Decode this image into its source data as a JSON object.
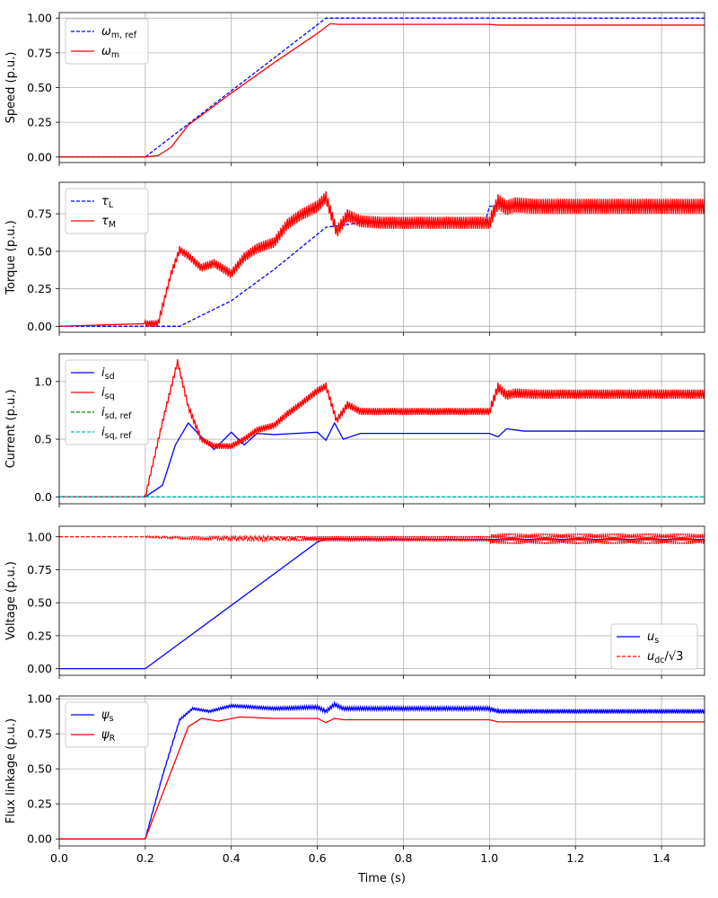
{
  "chart_data": [
    {
      "type": "line",
      "ylabel": "Speed (p.u.)",
      "xlim": [
        0,
        1.5
      ],
      "ylim": [
        -0.04,
        1.04
      ],
      "yticks": [
        "0.00",
        "0.25",
        "0.50",
        "0.75",
        "1.00"
      ],
      "ytick_values": [
        0,
        0.25,
        0.5,
        0.75,
        1.0
      ],
      "grid": true,
      "legend_position": "upper-left",
      "series": [
        {
          "name": "ω_m,ref",
          "label_main": "ω",
          "label_sub": "m, ref",
          "color": "#0000ff",
          "dash": true,
          "x": [
            0,
            0.2,
            0.62,
            1.5
          ],
          "y": [
            0,
            0,
            1.0,
            1.0
          ]
        },
        {
          "name": "ω_m",
          "label_main": "ω",
          "label_sub": "m",
          "color": "#ff0000",
          "dash": false,
          "x": [
            0,
            0.2,
            0.23,
            0.26,
            0.3,
            0.4,
            0.5,
            0.6,
            0.63,
            0.65,
            0.7,
            0.8,
            1.0,
            1.02,
            1.5
          ],
          "y": [
            0,
            0,
            0.01,
            0.07,
            0.23,
            0.46,
            0.68,
            0.89,
            0.96,
            0.955,
            0.955,
            0.955,
            0.955,
            0.95,
            0.95
          ]
        }
      ]
    },
    {
      "type": "line",
      "ylabel": "Torque (p.u.)",
      "xlim": [
        0,
        1.5
      ],
      "ylim": [
        -0.04,
        0.96
      ],
      "yticks": [
        "0.00",
        "0.25",
        "0.50",
        "0.75"
      ],
      "ytick_values": [
        0,
        0.25,
        0.5,
        0.75
      ],
      "grid": true,
      "legend_position": "upper-left",
      "series": [
        {
          "name": "τ_L",
          "label_main": "τ",
          "label_sub": "L",
          "color": "#0000ff",
          "dash": true,
          "x": [
            0,
            0.28,
            0.4,
            0.5,
            0.62,
            0.7,
            0.99,
            1.0,
            1.03,
            1.5
          ],
          "y": [
            0,
            0,
            0.17,
            0.38,
            0.66,
            0.69,
            0.69,
            0.8,
            0.8,
            0.8
          ]
        },
        {
          "name": "τ_M",
          "label_main": "τ",
          "label_sub": "M",
          "color": "#ff0000",
          "dash": false,
          "ripple": true,
          "x": [
            0,
            0.23,
            0.26,
            0.28,
            0.3,
            0.33,
            0.36,
            0.4,
            0.43,
            0.46,
            0.5,
            0.53,
            0.56,
            0.6,
            0.62,
            0.645,
            0.67,
            0.7,
            0.75,
            1.0,
            1.02,
            1.04,
            1.06,
            1.1,
            1.5
          ],
          "y": [
            0,
            0.02,
            0.35,
            0.51,
            0.47,
            0.39,
            0.42,
            0.35,
            0.46,
            0.52,
            0.56,
            0.68,
            0.74,
            0.8,
            0.86,
            0.63,
            0.74,
            0.7,
            0.69,
            0.69,
            0.83,
            0.79,
            0.81,
            0.8,
            0.8
          ],
          "ripple_amplitude": [
            0.02,
            0.04,
            0.05
          ]
        }
      ]
    },
    {
      "type": "line",
      "ylabel": "Current (p.u.)",
      "xlim": [
        0,
        1.5
      ],
      "ylim": [
        -0.06,
        1.24
      ],
      "yticks": [
        "0.0",
        "0.5",
        "1.0"
      ],
      "ytick_values": [
        0,
        0.5,
        1.0
      ],
      "grid": true,
      "legend_position": "upper-left",
      "series": [
        {
          "name": "i_sd",
          "label_main": "i",
          "label_sub": "sd",
          "color": "#0000ff",
          "dash": false,
          "x": [
            0,
            0.2,
            0.24,
            0.27,
            0.3,
            0.33,
            0.36,
            0.4,
            0.43,
            0.46,
            0.5,
            0.55,
            0.6,
            0.62,
            0.64,
            0.66,
            0.7,
            1.0,
            1.02,
            1.04,
            1.08,
            1.5
          ],
          "y": [
            0,
            0,
            0.1,
            0.45,
            0.64,
            0.52,
            0.41,
            0.56,
            0.45,
            0.55,
            0.54,
            0.55,
            0.56,
            0.49,
            0.64,
            0.5,
            0.55,
            0.55,
            0.52,
            0.59,
            0.57,
            0.57
          ]
        },
        {
          "name": "i_sq",
          "label_main": "i",
          "label_sub": "sq",
          "color": "#ff0000",
          "dash": false,
          "ripple": true,
          "x": [
            0,
            0.2,
            0.24,
            0.275,
            0.3,
            0.33,
            0.36,
            0.4,
            0.43,
            0.46,
            0.5,
            0.53,
            0.56,
            0.6,
            0.62,
            0.645,
            0.67,
            0.7,
            0.75,
            1.0,
            1.02,
            1.04,
            1.06,
            1.1,
            1.5
          ],
          "y": [
            0,
            0,
            0.65,
            1.17,
            0.78,
            0.5,
            0.44,
            0.44,
            0.5,
            0.58,
            0.62,
            0.72,
            0.8,
            0.92,
            0.96,
            0.66,
            0.8,
            0.74,
            0.74,
            0.74,
            0.95,
            0.88,
            0.9,
            0.89,
            0.89
          ],
          "ripple_amplitude": [
            0.02,
            0.03,
            0.04
          ]
        },
        {
          "name": "i_sd,ref",
          "label_main": "i",
          "label_sub": "sd, ref",
          "color": "#008000",
          "dash": true,
          "x": [
            0,
            1.5
          ],
          "y": [
            0,
            0
          ]
        },
        {
          "name": "i_sq,ref",
          "label_main": "i",
          "label_sub": "sq, ref",
          "color": "#00bfbf",
          "dash": true,
          "x": [
            0,
            1.5
          ],
          "y": [
            0,
            0
          ]
        }
      ]
    },
    {
      "type": "line",
      "ylabel": "Voltage (p.u.)",
      "xlim": [
        0,
        1.5
      ],
      "ylim": [
        -0.05,
        1.08
      ],
      "yticks": [
        "0.00",
        "0.25",
        "0.50",
        "0.75",
        "1.00"
      ],
      "ytick_values": [
        0,
        0.25,
        0.5,
        0.75,
        1.0
      ],
      "grid": true,
      "legend_position": "lower-right",
      "series": [
        {
          "name": "u_s",
          "label_main": "u",
          "label_sub": "s",
          "color": "#0000ff",
          "dash": false,
          "x": [
            0,
            0.2,
            0.6,
            0.62,
            1.5
          ],
          "y": [
            0,
            0,
            0.96,
            0.98,
            0.98
          ]
        },
        {
          "name": "u_dc/√3",
          "label_main": "u",
          "label_sub": "dc",
          "label_tail": "/√3",
          "color": "#ff0000",
          "dash": true,
          "ripple": true,
          "x": [
            0,
            0.2,
            0.3,
            0.6,
            1.0,
            1.5
          ],
          "y": [
            1.0,
            1.0,
            0.99,
            0.985,
            0.985,
            0.985
          ],
          "ripple_amplitude": [
            0.005,
            0.02,
            0.04
          ]
        }
      ]
    },
    {
      "type": "line",
      "ylabel": "Flux linkage (p.u.)",
      "xlim": [
        0,
        1.5
      ],
      "ylim": [
        -0.05,
        1.02
      ],
      "yticks": [
        "0.00",
        "0.25",
        "0.50",
        "0.75",
        "1.00"
      ],
      "ytick_values": [
        0,
        0.25,
        0.5,
        0.75,
        1.0
      ],
      "xticks": [
        "0.0",
        "0.2",
        "0.4",
        "0.6",
        "0.8",
        "1.0",
        "1.2",
        "1.4"
      ],
      "xtick_values": [
        0,
        0.2,
        0.4,
        0.6,
        0.8,
        1.0,
        1.2,
        1.4
      ],
      "xlabel": "Time (s)",
      "grid": true,
      "legend_position": "upper-left",
      "series": [
        {
          "name": "ψ_s",
          "label_main": "ψ",
          "label_sub": "s",
          "color": "#0000ff",
          "dash": false,
          "ripple": true,
          "x": [
            0,
            0.2,
            0.24,
            0.28,
            0.31,
            0.35,
            0.4,
            0.5,
            0.6,
            0.62,
            0.64,
            0.66,
            1.0,
            1.02,
            1.5
          ],
          "y": [
            0,
            0,
            0.45,
            0.85,
            0.93,
            0.91,
            0.95,
            0.93,
            0.94,
            0.91,
            0.96,
            0.93,
            0.93,
            0.91,
            0.91
          ],
          "ripple_amplitude": [
            0.005,
            0.012,
            0.015
          ]
        },
        {
          "name": "ψ_R",
          "label_main": "ψ",
          "label_sub": "R",
          "color": "#ff0000",
          "dash": false,
          "x": [
            0,
            0.2,
            0.25,
            0.3,
            0.33,
            0.37,
            0.42,
            0.5,
            0.6,
            0.62,
            0.64,
            0.66,
            1.0,
            1.02,
            1.5
          ],
          "y": [
            0,
            0,
            0.4,
            0.8,
            0.86,
            0.84,
            0.87,
            0.86,
            0.86,
            0.83,
            0.86,
            0.85,
            0.85,
            0.835,
            0.835
          ]
        }
      ]
    }
  ]
}
